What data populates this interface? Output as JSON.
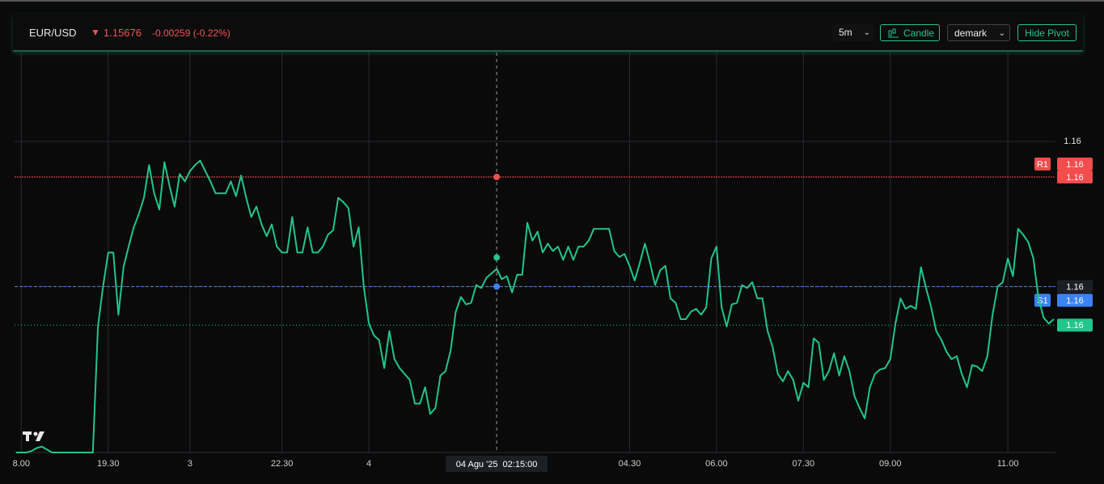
{
  "header": {
    "symbol": "EUR/USD",
    "change": "-0.00259 (-0.22%)"
  },
  "controls": {
    "interval": "5m",
    "chart_type": "Candle",
    "pivot_type": "demark",
    "pivot_toggle": "Hide Pivot"
  },
  "chart_data": {
    "type": "line",
    "color": "#22c58c",
    "values": [
      1.1559,
      1.1559,
      1.1559,
      1.15591,
      1.15593,
      1.15594,
      1.15592,
      1.1559,
      1.1559,
      1.1559,
      1.1559,
      1.1559,
      1.1559,
      1.1559,
      1.1559,
      1.1559,
      1.15675,
      1.15702,
      1.15725,
      1.15725,
      1.15683,
      1.15715,
      1.15729,
      1.15742,
      1.15751,
      1.15762,
      1.15784,
      1.15765,
      1.15754,
      1.15786,
      1.1577,
      1.15756,
      1.15778,
      1.15773,
      1.1578,
      1.15784,
      1.15787,
      1.1578,
      1.15773,
      1.15765,
      1.15765,
      1.15765,
      1.15773,
      1.15763,
      1.15777,
      1.15762,
      1.15749,
      1.15756,
      1.15744,
      1.15736,
      1.15744,
      1.15729,
      1.15725,
      1.15725,
      1.15749,
      1.15725,
      1.15725,
      1.15742,
      1.15725,
      1.15725,
      1.15729,
      1.15737,
      1.1574,
      1.15762,
      1.15759,
      1.15755,
      1.15729,
      1.15742,
      1.15702,
      1.15677,
      1.15669,
      1.15666,
      1.15647,
      1.15672,
      1.15653,
      1.15647,
      1.15643,
      1.15639,
      1.15623,
      1.15623,
      1.15634,
      1.15616,
      1.1562,
      1.15642,
      1.15645,
      1.15659,
      1.15685,
      1.15695,
      1.1569,
      1.15691,
      1.15703,
      1.15701,
      1.15708,
      1.15711,
      1.15714,
      1.15707,
      1.15709,
      1.15698,
      1.1571,
      1.1571,
      1.15745,
      1.15733,
      1.15739,
      1.15725,
      1.15731,
      1.15726,
      1.15729,
      1.1572,
      1.15729,
      1.1572,
      1.15729,
      1.15729,
      1.15733,
      1.15741,
      1.15741,
      1.15741,
      1.15741,
      1.15726,
      1.15722,
      1.15724,
      1.15716,
      1.15706,
      1.15718,
      1.15731,
      1.15718,
      1.15703,
      1.15713,
      1.15716,
      1.15694,
      1.15691,
      1.1568,
      1.1568,
      1.15685,
      1.15687,
      1.15683,
      1.15688,
      1.15721,
      1.15729,
      1.15688,
      1.15675,
      1.1569,
      1.15691,
      1.15703,
      1.15701,
      1.15705,
      1.15694,
      1.15694,
      1.15672,
      1.15661,
      1.15643,
      1.15638,
      1.15645,
      1.15639,
      1.15625,
      1.15637,
      1.15634,
      1.15667,
      1.15664,
      1.15639,
      1.15645,
      1.15657,
      1.15642,
      1.15655,
      1.15645,
      1.15628,
      1.1562,
      1.15613,
      1.15634,
      1.15643,
      1.15646,
      1.15647,
      1.15653,
      1.15677,
      1.15694,
      1.15687,
      1.15689,
      1.15687,
      1.15715,
      1.15701,
      1.15688,
      1.15672,
      1.15666,
      1.15658,
      1.15653,
      1.15655,
      1.15643,
      1.15634,
      1.15649,
      1.15648,
      1.15645,
      1.15655,
      1.15683,
      1.15702,
      1.15705,
      1.15721,
      1.15709,
      1.15741,
      1.15737,
      1.15732,
      1.15721,
      1.15694,
      1.15681,
      1.15677,
      1.1568
    ],
    "xlim": [
      0,
      203
    ],
    "xticks": [
      {
        "value": 1,
        "label": "8.00"
      },
      {
        "value": 18,
        "label": "19.30"
      },
      {
        "value": 34,
        "label": "3"
      },
      {
        "value": 52,
        "label": "22.30"
      },
      {
        "value": 69,
        "label": "4"
      },
      {
        "value": 120,
        "label": "04.30"
      },
      {
        "value": 137,
        "label": "06.00"
      },
      {
        "value": 154,
        "label": "07.30"
      },
      {
        "value": 171,
        "label": "09.00"
      },
      {
        "value": 194,
        "label": "11.00"
      }
    ],
    "ylim": [
      1.1559,
      1.1586
    ],
    "yticks": [
      {
        "value": 1.158,
        "label": "1.16"
      }
    ],
    "grid": true,
    "last": {
      "value": 1.15676,
      "label": "1.16",
      "color": "#22c58c"
    },
    "pivots": [
      {
        "name": "R1",
        "value": 1.15776,
        "label": "1.16",
        "color": "#f24c4c"
      },
      {
        "name": "S1",
        "value": 1.15702,
        "label": "1.16",
        "color": "#3b82f6"
      }
    ],
    "crosshair": {
      "x": 94,
      "y": 1.15702,
      "y_label": "1.16",
      "x_label": "04 Agu '25  02:15:00"
    }
  }
}
